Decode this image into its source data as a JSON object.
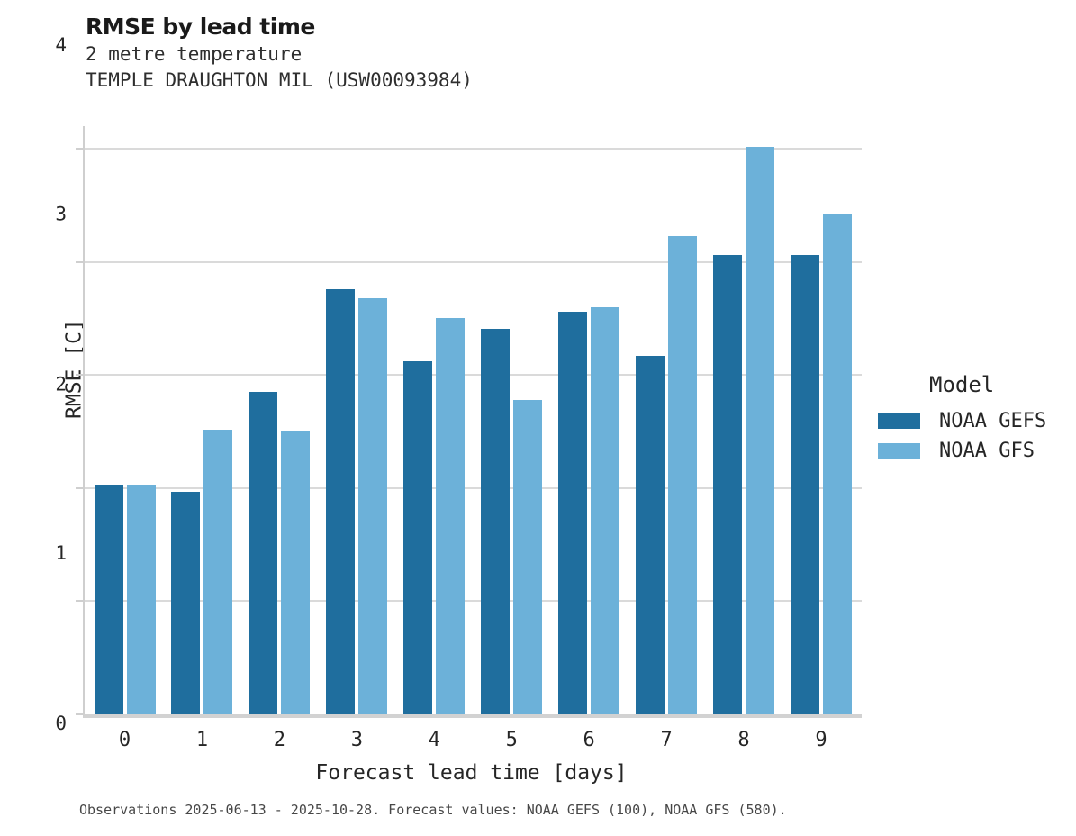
{
  "header": {
    "title": "RMSE by lead time",
    "subtitle_lines": [
      "2 metre temperature",
      "TEMPLE DRAUGHTON MIL (USW00093984)"
    ]
  },
  "axes": {
    "xlabel": "Forecast lead time [days]",
    "ylabel": "RMSE [C]"
  },
  "legend": {
    "title": "Model",
    "entries": [
      {
        "label": "NOAA GEFS",
        "color": "#1f6e9e"
      },
      {
        "label": "NOAA GFS",
        "color": "#6cb1d9"
      }
    ]
  },
  "footer": {
    "text": "Observations 2025-06-13 - 2025-10-28. Forecast values: NOAA GEFS (100), NOAA GFS (580)."
  },
  "colors": {
    "series_dark_blue": "#1f6e9e",
    "series_light_blue": "#6cb1d9",
    "gridline": "#dadada",
    "axis_spine": "#cfcfcf"
  },
  "chart_data": {
    "type": "bar",
    "title": "RMSE by lead time",
    "subtitle": "2 metre temperature — TEMPLE DRAUGHTON MIL (USW00093984)",
    "categories": [
      "0",
      "1",
      "2",
      "3",
      "4",
      "5",
      "6",
      "7",
      "8",
      "9"
    ],
    "series": [
      {
        "name": "NOAA GEFS",
        "color": "#1f6e9e",
        "values": [
          2.03,
          1.97,
          2.85,
          3.76,
          3.12,
          3.41,
          3.56,
          3.17,
          4.06,
          4.06
        ]
      },
      {
        "name": "NOAA GFS",
        "color": "#6cb1d9",
        "values": [
          2.03,
          2.52,
          2.51,
          3.68,
          3.5,
          2.78,
          3.6,
          4.23,
          5.02,
          4.43
        ]
      }
    ],
    "xlabel": "Forecast lead time [days]",
    "ylabel": "RMSE [C]",
    "ylim": [
      0,
      5.2
    ],
    "yticks": [
      0,
      1,
      2,
      3,
      4,
      5
    ],
    "grid": true,
    "legend_title": "Model",
    "legend_position": "right"
  }
}
